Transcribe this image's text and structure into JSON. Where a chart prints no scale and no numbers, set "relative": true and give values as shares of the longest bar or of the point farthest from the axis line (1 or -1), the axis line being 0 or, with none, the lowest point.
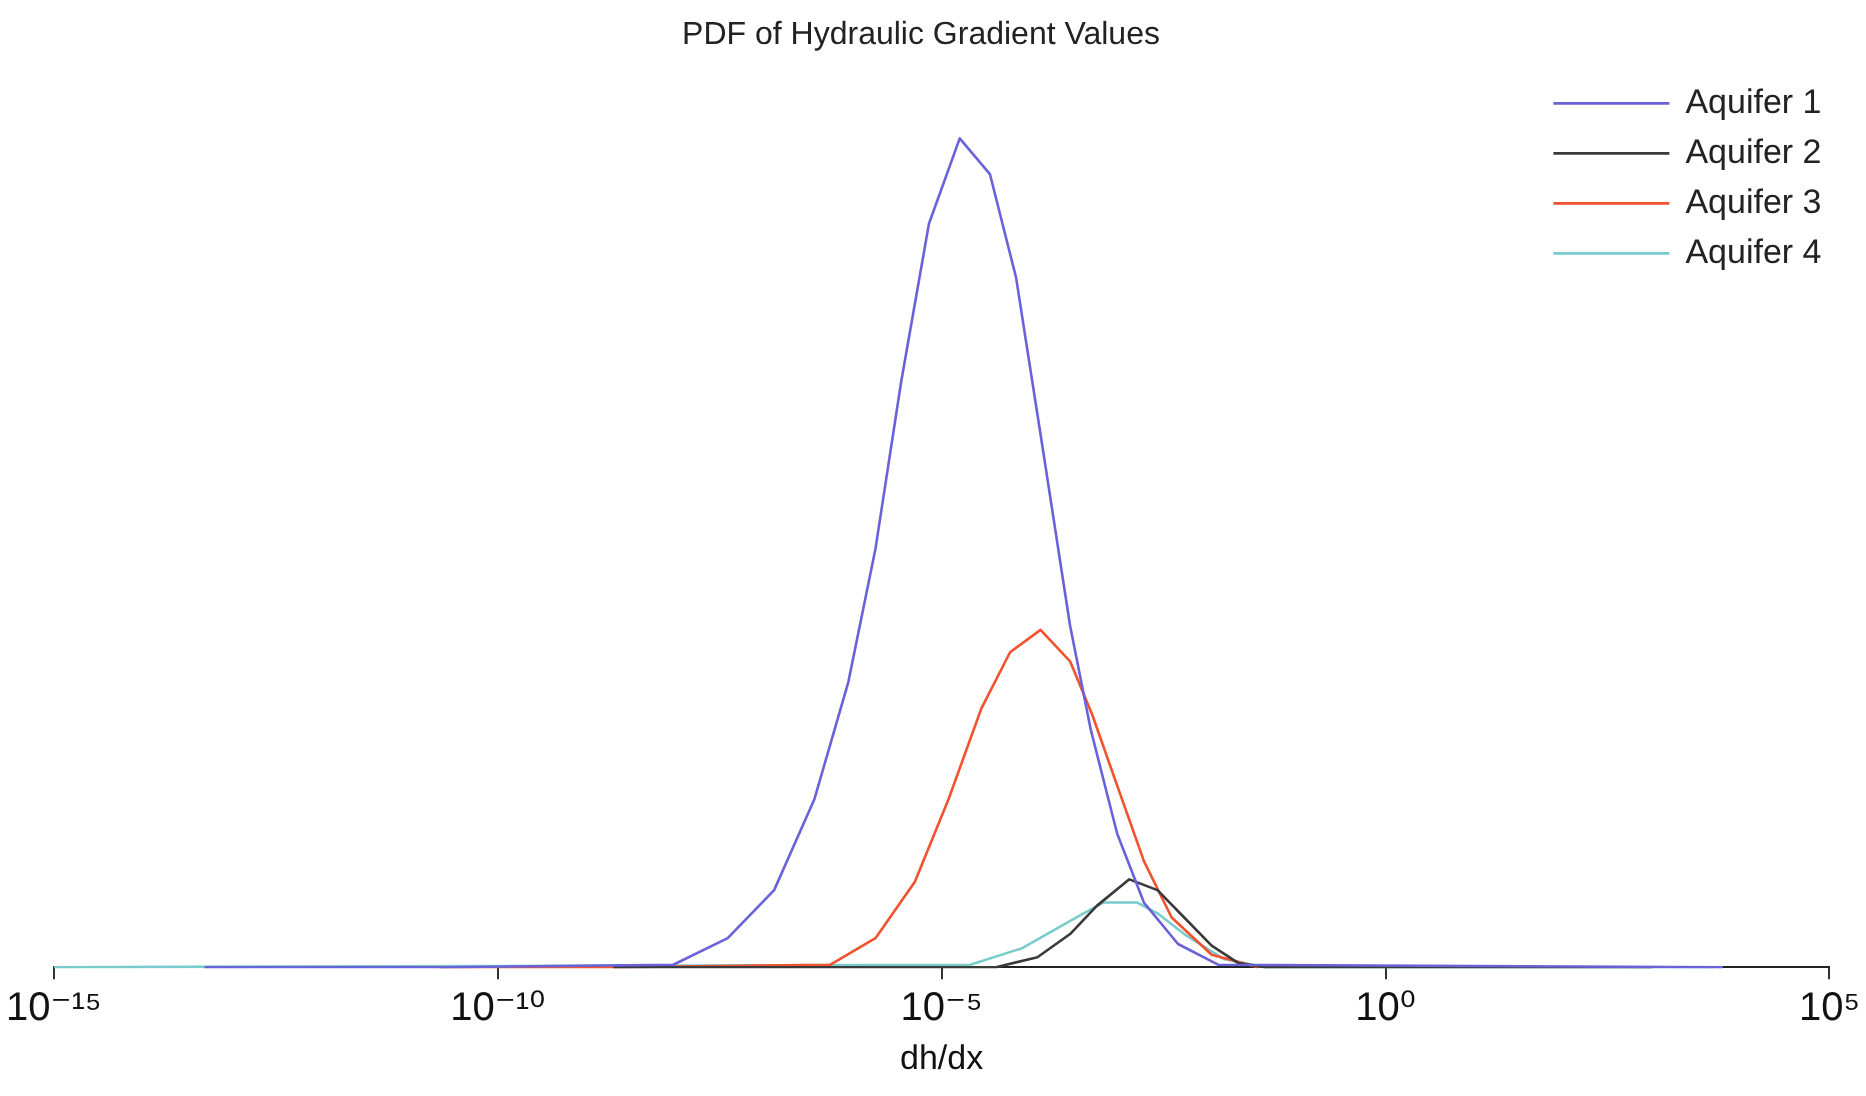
{
  "chart_data": {
    "type": "line",
    "title": "PDF of Hydraulic Gradient Values",
    "xlabel": "dh/dx",
    "log": "x",
    "relative": true,
    "xlim": [
      1e-15,
      100000
    ],
    "xticks": [
      {
        "value": 1e-15,
        "label": "10⁻¹⁵"
      },
      {
        "value": 1e-10,
        "label": "10⁻¹⁰"
      },
      {
        "value": 1e-05,
        "label": "10⁻⁵"
      },
      {
        "value": 1,
        "label": "10⁰"
      },
      {
        "value": 100000,
        "label": "10⁵"
      }
    ],
    "legend": "top right",
    "grid": false,
    "marker": "none",
    "line_style": "solid",
    "series": [
      {
        "name": "Aquifer 1",
        "color": "#6a62d8",
        "x": [
          5e-14,
          2.5e-11,
          9.5e-09,
          3.9e-08,
          1.3e-07,
          3.7e-07,
          8.9e-07,
          1.8e-06,
          3.5e-06,
          7.2e-06,
          1.6e-05,
          3.5e-05,
          6.9e-05,
          0.00014,
          0.00028,
          0.00048,
          0.00095,
          0.0019,
          0.0046,
          0.013,
          6300
        ],
        "values": [
          0,
          0,
          0.003,
          0.035,
          0.093,
          0.203,
          0.344,
          0.505,
          0.706,
          0.897,
          1,
          0.957,
          0.832,
          0.621,
          0.412,
          0.286,
          0.161,
          0.078,
          0.028,
          0.003,
          0
        ]
      },
      {
        "name": "Aquifer 2",
        "color": "#3a3a3a",
        "x": [
          2e-09,
          4.1e-05,
          0.00012,
          0.00028,
          0.00056,
          0.0013,
          0.0027,
          0.0054,
          0.011,
          0.022,
          0.044,
          1000
        ],
        "values": [
          0,
          0,
          0.012,
          0.04,
          0.074,
          0.106,
          0.093,
          0.06,
          0.026,
          0.005,
          0,
          0
        ]
      },
      {
        "name": "Aquifer 3",
        "color": "#f2522e",
        "x": [
          2.2e-11,
          2e-09,
          5.6e-07,
          1.8e-06,
          5e-06,
          1.2e-05,
          2.8e-05,
          5.9e-05,
          0.00013,
          0.00028,
          0.0005,
          0.00095,
          0.0019,
          0.0039,
          0.011,
          0.037
        ],
        "values": [
          0,
          0,
          0.003,
          0.035,
          0.103,
          0.203,
          0.312,
          0.38,
          0.407,
          0.369,
          0.304,
          0.219,
          0.128,
          0.06,
          0.015,
          0
        ]
      },
      {
        "name": "Aquifer 4",
        "color": "#78cccc",
        "x": [
          1e-15,
          2.1e-05,
          8.1e-05,
          0.00033,
          0.00066,
          0.0016,
          0.0027,
          0.0054,
          0.015,
          0.044,
          5000
        ],
        "values": [
          0,
          0.003,
          0.023,
          0.06,
          0.078,
          0.078,
          0.065,
          0.04,
          0.01,
          0,
          0
        ]
      }
    ]
  }
}
